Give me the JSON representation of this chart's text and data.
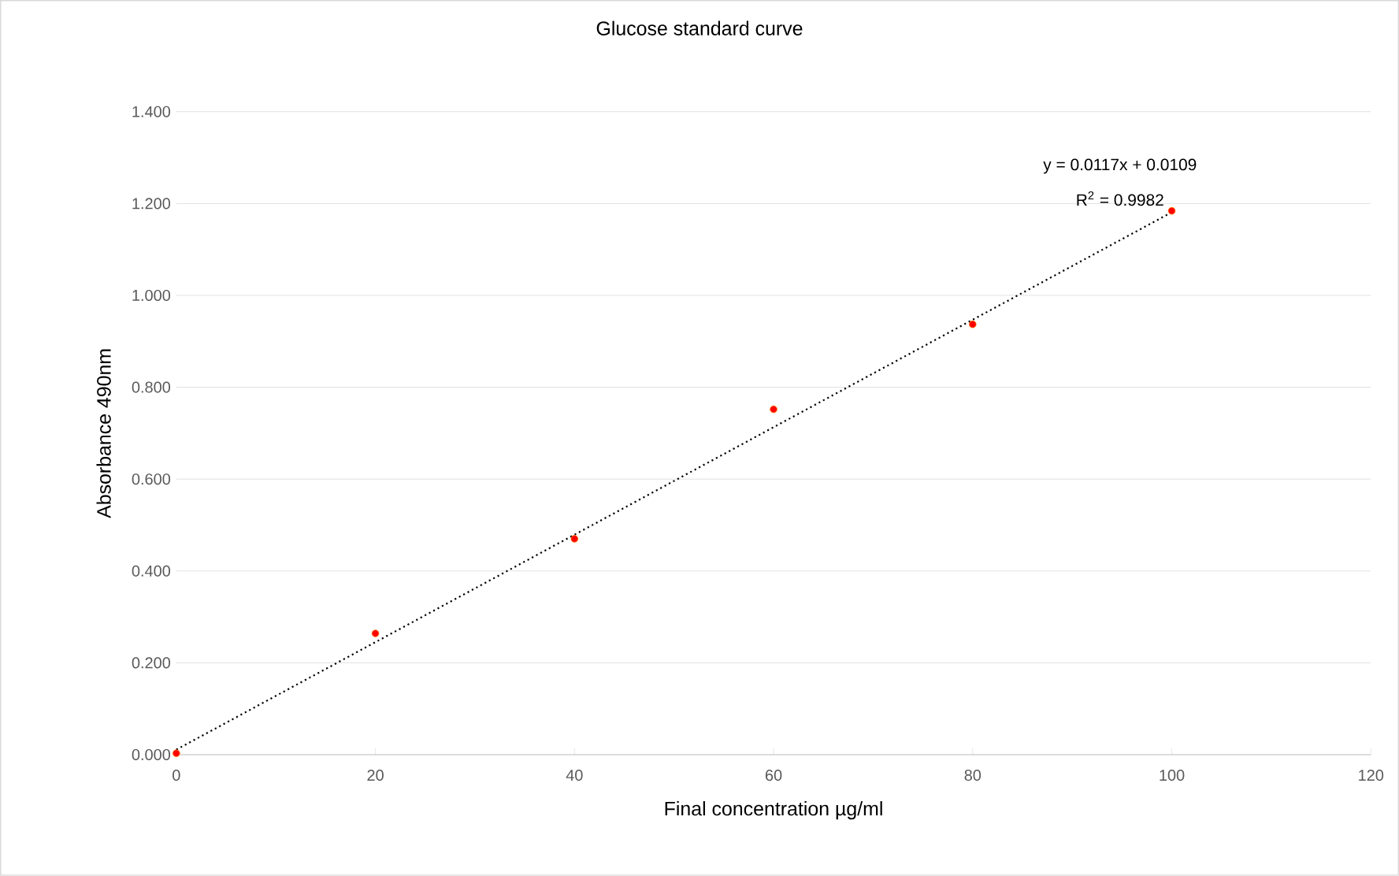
{
  "chart_data": {
    "type": "scatter",
    "title": "Glucose standard curve",
    "xlabel": "Final concentration µg/ml",
    "ylabel": "Absorbance 490nm",
    "xlim": [
      0,
      120
    ],
    "xticks": [
      0,
      20,
      40,
      60,
      80,
      100,
      120
    ],
    "ylim": [
      0,
      1.4
    ],
    "yticks": [
      {
        "value": 0,
        "label": "0.000"
      },
      {
        "value": 0.2,
        "label": "0.200"
      },
      {
        "value": 0.4,
        "label": "0.400"
      },
      {
        "value": 0.6,
        "label": "0.600"
      },
      {
        "value": 0.8,
        "label": "0.800"
      },
      {
        "value": 1.0,
        "label": "1.000"
      },
      {
        "value": 1.2,
        "label": "1.200"
      },
      {
        "value": 1.4,
        "label": "1.400"
      }
    ],
    "grid": "y",
    "series": [
      {
        "type": "scatter",
        "color": "#ff0000",
        "marker": "circle",
        "x": [
          0,
          20,
          40,
          60,
          80,
          100
        ],
        "values": [
          0.003,
          0.264,
          0.47,
          0.752,
          0.937,
          1.184
        ]
      },
      {
        "type": "line",
        "color": "#000000",
        "marker": "none",
        "line_style": "dotted",
        "x": [
          0,
          100
        ],
        "values": [
          0.011,
          1.181
        ]
      }
    ],
    "annotations": [
      "y = 0.0117x + 0.0109",
      "R$^{2}$ = 0.9982"
    ]
  }
}
